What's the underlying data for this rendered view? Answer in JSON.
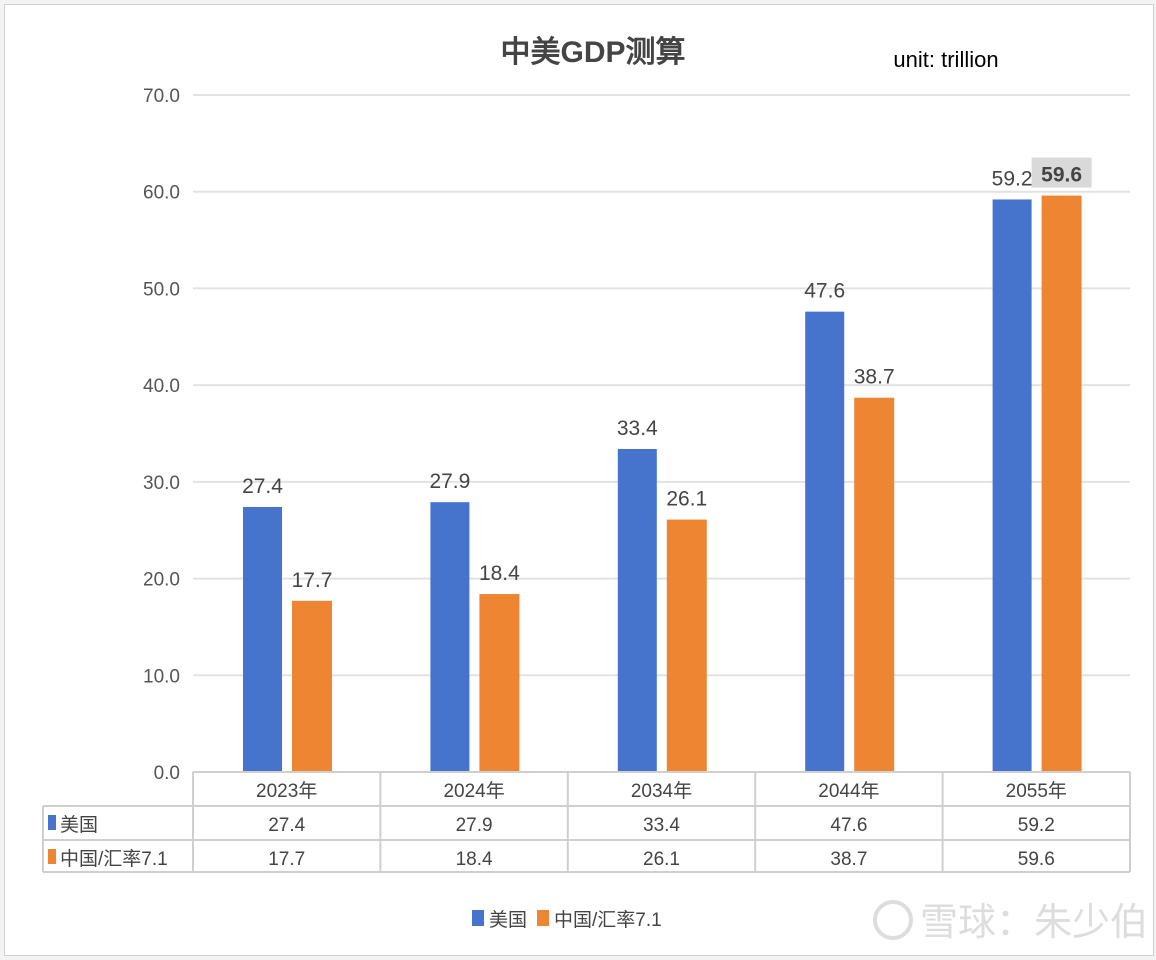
{
  "chart_data": {
    "type": "bar",
    "title": "中美GDP测算",
    "annotation": "unit: trillion",
    "categories": [
      "2023年",
      "2024年",
      "2034年",
      "2044年",
      "2055年"
    ],
    "series": [
      {
        "name": "美国",
        "color": "#4674CD",
        "values": [
          27.4,
          27.9,
          33.4,
          47.6,
          59.2
        ]
      },
      {
        "name": "中国/汇率7.1",
        "color": "#EE8532",
        "values": [
          17.7,
          18.4,
          26.1,
          38.7,
          59.6
        ]
      }
    ],
    "ylim": [
      0,
      70
    ],
    "yticks": [
      "0.0",
      "10.0",
      "20.0",
      "30.0",
      "40.0",
      "50.0",
      "60.0",
      "70.0"
    ],
    "grid": true,
    "data_table": true,
    "legend": "bottom",
    "highlighted_label": "59.6"
  },
  "watermark": "雪球：朱少伯"
}
